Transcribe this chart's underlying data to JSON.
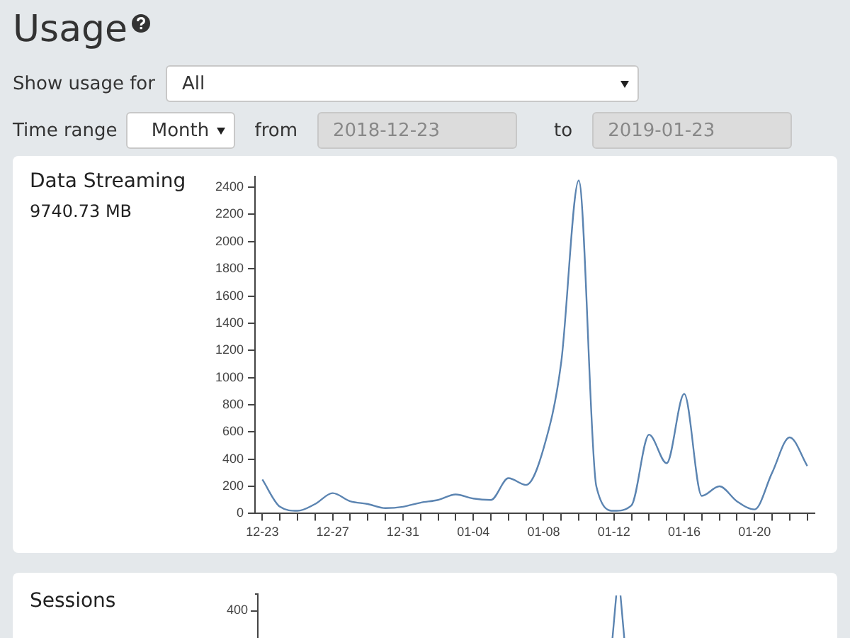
{
  "chart_data": [
    {
      "type": "other",
      "title": "Usage",
      "annotations": [
        "Show usage for",
        "All",
        "Time range",
        "Month",
        "from",
        "2018-12-23",
        "to",
        "2019-01-23"
      ]
    },
    {
      "type": "line",
      "title": "Data Streaming",
      "subtitle": "9740.73 MB",
      "x": [
        "2018-12-23",
        "2018-12-24",
        "2018-12-25",
        "2018-12-26",
        "2018-12-27",
        "2018-12-28",
        "2018-12-29",
        "2018-12-30",
        "2018-12-31",
        "2019-01-01",
        "2019-01-02",
        "2019-01-03",
        "2019-01-04",
        "2019-01-05",
        "2019-01-06",
        "2019-01-07",
        "2019-01-08",
        "2019-01-09",
        "2019-01-10",
        "2019-01-11",
        "2019-01-12",
        "2019-01-13",
        "2019-01-14",
        "2019-01-15",
        "2019-01-16",
        "2019-01-17",
        "2019-01-18",
        "2019-01-19",
        "2019-01-20",
        "2019-01-21",
        "2019-01-22",
        "2019-01-23"
      ],
      "series": [
        {
          "color": "#5b84b1",
          "values": [
            250,
            50,
            20,
            70,
            150,
            90,
            70,
            40,
            50,
            80,
            100,
            140,
            110,
            100,
            260,
            210,
            480,
            1110,
            2450,
            200,
            20,
            60,
            580,
            370,
            880,
            130,
            200,
            90,
            30,
            300,
            560,
            350
          ]
        }
      ],
      "xlim": [
        "2018-12-22T14:00",
        "2019-01-23T10:00"
      ],
      "xticks": [
        {
          "value": "2018-12-23",
          "label": "12-23"
        },
        {
          "value": "2018-12-24",
          "label": null
        },
        {
          "value": "2018-12-25",
          "label": null
        },
        {
          "value": "2018-12-26",
          "label": null
        },
        {
          "value": "2018-12-27",
          "label": "12-27"
        },
        {
          "value": "2018-12-28",
          "label": null
        },
        {
          "value": "2018-12-29",
          "label": null
        },
        {
          "value": "2018-12-30",
          "label": null
        },
        {
          "value": "2018-12-31",
          "label": "12-31"
        },
        {
          "value": "2019-01-01",
          "label": null
        },
        {
          "value": "2019-01-02",
          "label": null
        },
        {
          "value": "2019-01-03",
          "label": null
        },
        {
          "value": "2019-01-04",
          "label": "01-04"
        },
        {
          "value": "2019-01-05",
          "label": null
        },
        {
          "value": "2019-01-06",
          "label": null
        },
        {
          "value": "2019-01-07",
          "label": null
        },
        {
          "value": "2019-01-08",
          "label": "01-08"
        },
        {
          "value": "2019-01-09",
          "label": null
        },
        {
          "value": "2019-01-10",
          "label": null
        },
        {
          "value": "2019-01-11",
          "label": null
        },
        {
          "value": "2019-01-12",
          "label": "01-12"
        },
        {
          "value": "2019-01-13",
          "label": null
        },
        {
          "value": "2019-01-14",
          "label": null
        },
        {
          "value": "2019-01-15",
          "label": null
        },
        {
          "value": "2019-01-16",
          "label": "01-16"
        },
        {
          "value": "2019-01-17",
          "label": null
        },
        {
          "value": "2019-01-18",
          "label": null
        },
        {
          "value": "2019-01-19",
          "label": null
        },
        {
          "value": "2019-01-20",
          "label": "01-20"
        },
        {
          "value": "2019-01-21",
          "label": null
        },
        {
          "value": "2019-01-22",
          "label": null
        },
        {
          "value": "2019-01-23",
          "label": null
        }
      ],
      "ylim": [
        0,
        2480
      ],
      "yticks": [
        0,
        200,
        400,
        600,
        800,
        1000,
        1200,
        1400,
        1600,
        1800,
        2000,
        2200,
        2400
      ],
      "grid": false,
      "legend": false,
      "marker": "none"
    },
    {
      "type": "other",
      "title": "Sessions",
      "annotations": [
        "400"
      ]
    }
  ]
}
